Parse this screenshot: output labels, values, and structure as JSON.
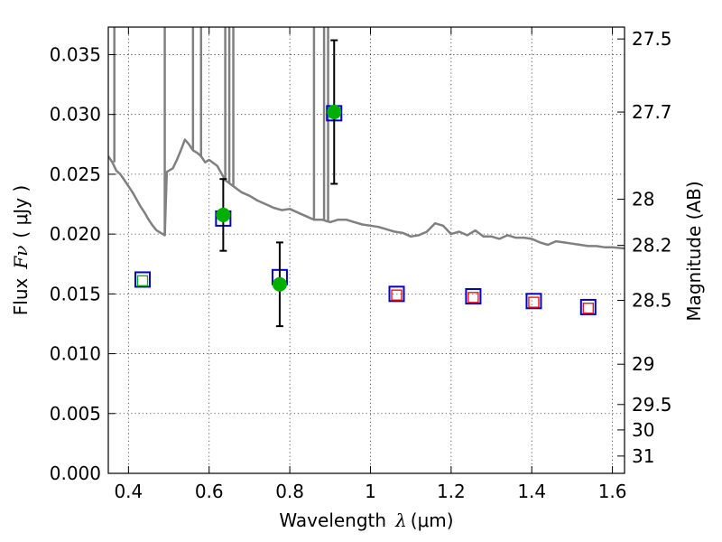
{
  "chart_data": {
    "type": "scatter",
    "xlabel": "Wavelength",
    "xlabel_symbol": "λ",
    "xlabel_unit": "(μm)",
    "ylabel": "Flux",
    "ylabel_symbol": "Fν",
    "ylabel_unit": "( μJy )",
    "right_ylabel": "Magnitude (AB)",
    "xlim": [
      0.35,
      1.63
    ],
    "ylim": [
      0.0,
      0.0373
    ],
    "x_ticks": [
      0.4,
      0.6,
      0.8,
      1.0,
      1.2,
      1.4,
      1.6
    ],
    "x_tick_labels": [
      "0.4",
      "0.6",
      "0.8",
      "1",
      "1.2",
      "1.4",
      "1.6"
    ],
    "y_ticks": [
      0.0,
      0.005,
      0.01,
      0.015,
      0.02,
      0.025,
      0.03,
      0.035
    ],
    "y_tick_labels": [
      "0.000",
      "0.005",
      "0.010",
      "0.015",
      "0.020",
      "0.025",
      "0.030",
      "0.035"
    ],
    "right_ticks": [
      {
        "label": "27.5",
        "mag": 27.5
      },
      {
        "label": "27.7",
        "mag": 27.7
      },
      {
        "label": "28",
        "mag": 28.0
      },
      {
        "label": "28.2",
        "mag": 28.2
      },
      {
        "label": "28.5",
        "mag": 28.5
      },
      {
        "label": "29",
        "mag": 29.0
      },
      {
        "label": "29.5",
        "mag": 29.5
      },
      {
        "label": "30",
        "mag": 30.0
      },
      {
        "label": "31",
        "mag": 31.0
      }
    ],
    "grid": true,
    "series": [
      {
        "kind": "model_spectrum",
        "color": "#808080",
        "points": [
          [
            0.35,
            0.0265
          ],
          [
            0.36,
            0.026
          ],
          [
            0.37,
            0.0253
          ],
          [
            0.38,
            0.025
          ],
          [
            0.39,
            0.0245
          ],
          [
            0.4,
            0.024
          ],
          [
            0.41,
            0.0235
          ],
          [
            0.42,
            0.0229
          ],
          [
            0.43,
            0.0223
          ],
          [
            0.44,
            0.0218
          ],
          [
            0.45,
            0.0212
          ],
          [
            0.46,
            0.0207
          ],
          [
            0.47,
            0.0203
          ],
          [
            0.48,
            0.0201
          ],
          [
            0.49,
            0.0199
          ],
          [
            0.495,
            0.0252
          ],
          [
            0.51,
            0.0255
          ],
          [
            0.52,
            0.0262
          ],
          [
            0.53,
            0.027
          ],
          [
            0.54,
            0.0279
          ],
          [
            0.55,
            0.0275
          ],
          [
            0.56,
            0.027
          ],
          [
            0.57,
            0.0268
          ],
          [
            0.58,
            0.0265
          ],
          [
            0.59,
            0.026
          ],
          [
            0.6,
            0.0262
          ],
          [
            0.62,
            0.0257
          ],
          [
            0.64,
            0.0245
          ],
          [
            0.66,
            0.024
          ],
          [
            0.68,
            0.0235
          ],
          [
            0.7,
            0.0232
          ],
          [
            0.72,
            0.0228
          ],
          [
            0.74,
            0.0225
          ],
          [
            0.76,
            0.0222
          ],
          [
            0.78,
            0.022
          ],
          [
            0.8,
            0.0221
          ],
          [
            0.82,
            0.0218
          ],
          [
            0.84,
            0.0215
          ],
          [
            0.86,
            0.0212
          ],
          [
            0.88,
            0.0212
          ],
          [
            0.9,
            0.021
          ],
          [
            0.92,
            0.0212
          ],
          [
            0.94,
            0.0212
          ],
          [
            0.96,
            0.021
          ],
          [
            0.98,
            0.0208
          ],
          [
            1.0,
            0.0207
          ],
          [
            1.02,
            0.0206
          ],
          [
            1.04,
            0.0204
          ],
          [
            1.06,
            0.0202
          ],
          [
            1.08,
            0.0201
          ],
          [
            1.1,
            0.0198
          ],
          [
            1.12,
            0.0199
          ],
          [
            1.14,
            0.0202
          ],
          [
            1.16,
            0.0209
          ],
          [
            1.18,
            0.0207
          ],
          [
            1.2,
            0.02
          ],
          [
            1.22,
            0.0202
          ],
          [
            1.24,
            0.0199
          ],
          [
            1.26,
            0.0203
          ],
          [
            1.28,
            0.0198
          ],
          [
            1.3,
            0.0198
          ],
          [
            1.32,
            0.0196
          ],
          [
            1.34,
            0.0199
          ],
          [
            1.36,
            0.0197
          ],
          [
            1.38,
            0.0197
          ],
          [
            1.4,
            0.0196
          ],
          [
            1.42,
            0.0193
          ],
          [
            1.44,
            0.0191
          ],
          [
            1.46,
            0.0194
          ],
          [
            1.48,
            0.0193
          ],
          [
            1.5,
            0.0192
          ],
          [
            1.52,
            0.0191
          ],
          [
            1.54,
            0.019
          ],
          [
            1.56,
            0.019
          ],
          [
            1.58,
            0.0189
          ],
          [
            1.6,
            0.0189
          ],
          [
            1.63,
            0.0188
          ]
        ],
        "spikes": [
          {
            "x": 0.365,
            "top": 0.0373,
            "base": 0.026
          },
          {
            "x": 0.49,
            "top": 0.0373,
            "base": 0.0199
          },
          {
            "x": 0.56,
            "top": 0.0373,
            "base": 0.027
          },
          {
            "x": 0.58,
            "top": 0.0373,
            "base": 0.0265
          },
          {
            "x": 0.64,
            "top": 0.0373,
            "base": 0.0245
          },
          {
            "x": 0.65,
            "top": 0.0373,
            "base": 0.0243
          },
          {
            "x": 0.66,
            "top": 0.0373,
            "base": 0.024
          },
          {
            "x": 0.86,
            "top": 0.0373,
            "base": 0.0212
          },
          {
            "x": 0.885,
            "top": 0.0373,
            "base": 0.0212
          },
          {
            "x": 0.895,
            "top": 0.0373,
            "base": 0.0211
          }
        ]
      },
      {
        "kind": "observed",
        "marker": "circle",
        "color": "#00b000",
        "points": [
          {
            "x": 0.635,
            "y": 0.0216,
            "err": 0.003
          },
          {
            "x": 0.775,
            "y": 0.0158,
            "err": 0.0035
          },
          {
            "x": 0.91,
            "y": 0.0302,
            "err": 0.006
          }
        ]
      },
      {
        "kind": "model_photometry",
        "marker": "square",
        "color": "#0000cc",
        "points": [
          {
            "x": 0.435,
            "y": 0.0162
          },
          {
            "x": 0.635,
            "y": 0.0213
          },
          {
            "x": 0.775,
            "y": 0.0164
          },
          {
            "x": 0.91,
            "y": 0.0301
          },
          {
            "x": 1.065,
            "y": 0.015
          },
          {
            "x": 1.255,
            "y": 0.0148
          },
          {
            "x": 1.405,
            "y": 0.0144
          },
          {
            "x": 1.54,
            "y": 0.0139
          }
        ]
      },
      {
        "kind": "upper_limits_inner",
        "marker": "square-small",
        "points": [
          {
            "x": 0.435,
            "y": 0.0161,
            "color": "#00b000"
          },
          {
            "x": 1.065,
            "y": 0.0149,
            "color": "#ff0000"
          },
          {
            "x": 1.255,
            "y": 0.0147,
            "color": "#ff0000"
          },
          {
            "x": 1.405,
            "y": 0.0143,
            "color": "#ff0000"
          },
          {
            "x": 1.54,
            "y": 0.0138,
            "color": "#ff0000"
          }
        ]
      }
    ]
  }
}
